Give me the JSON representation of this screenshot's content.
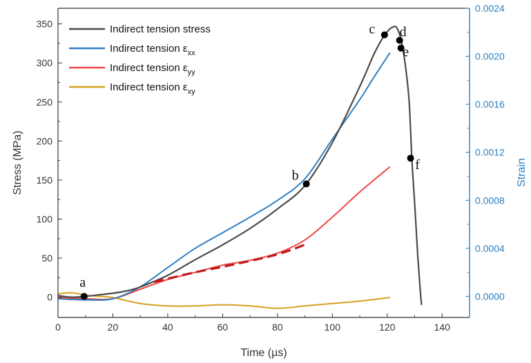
{
  "colors": {
    "stress": "#4a4a4a",
    "exx": "#2e7fc4",
    "eyy": "#f04545",
    "eyy_fit": "#c01818",
    "exy": "#d4a020",
    "axis": "#333333",
    "right_axis": "#2a7fc0"
  },
  "chart_data": {
    "type": "line",
    "xlabel": "Time (µs)",
    "ylabel": "Stress (MPa)",
    "y2label": "Strain",
    "xlim": [
      0,
      150
    ],
    "ylim": [
      -26,
      370
    ],
    "y2lim": [
      -0.000176,
      0.0024
    ],
    "xticks": [
      0,
      20,
      40,
      60,
      80,
      100,
      120,
      140
    ],
    "yticks": [
      0,
      50,
      100,
      150,
      200,
      250,
      300,
      350
    ],
    "y2ticks": [
      "0.0000",
      "0.0004",
      "0.0008",
      "0.0012",
      "0.0016",
      "0.0020",
      "0.0024"
    ],
    "legend": [
      {
        "key": "stress",
        "label": "Indirect tension stress",
        "sub": ""
      },
      {
        "key": "exx",
        "label": "Indirect tension ε",
        "sub": "xx"
      },
      {
        "key": "eyy",
        "label": "Indirect tension ε",
        "sub": "yy"
      },
      {
        "key": "exy",
        "label": "Indirect tension ε",
        "sub": "xy"
      }
    ],
    "series": [
      {
        "key": "stress",
        "axis": "left",
        "x": [
          0,
          5,
          10,
          15,
          20,
          25,
          30,
          40,
          50,
          60,
          70,
          80,
          90,
          100,
          110,
          115,
          118,
          120,
          122,
          123.5,
          125,
          126.5,
          128,
          129,
          130,
          131,
          132,
          132.5
        ],
        "y": [
          2,
          0,
          1,
          3,
          5,
          8,
          13,
          28,
          48,
          67,
          88,
          113,
          143,
          198,
          270,
          310,
          330,
          340,
          346,
          345,
          330,
          300,
          250,
          175,
          120,
          60,
          10,
          -10
        ]
      },
      {
        "key": "exx",
        "axis": "right",
        "x": [
          0,
          10,
          20,
          30,
          40,
          50,
          60,
          70,
          80,
          90,
          100,
          110,
          115,
          121
        ],
        "y": [
          -2e-05,
          -3e-05,
          -2e-05,
          8e-05,
          0.00024,
          0.0004,
          0.00053,
          0.00066,
          0.0008,
          0.00098,
          0.00131,
          0.00164,
          0.00182,
          0.00203
        ]
      },
      {
        "key": "eyy",
        "axis": "right",
        "x": [
          0,
          10,
          20,
          30,
          40,
          50,
          60,
          70,
          80,
          90,
          100,
          110,
          121
        ],
        "y": [
          -1e-05,
          -2e-05,
          -2e-05,
          6e-05,
          0.00014,
          0.0002,
          0.00026,
          0.0003,
          0.00036,
          0.00047,
          0.00066,
          0.00087,
          0.00108
        ]
      },
      {
        "key": "exy",
        "axis": "right",
        "x": [
          0,
          5,
          10,
          15,
          20,
          30,
          40,
          50,
          60,
          70,
          80,
          90,
          100,
          110,
          121
        ],
        "y": [
          2e-05,
          3e-05,
          1e-05,
          0.0,
          -1e-05,
          -6e-05,
          -8e-05,
          -8e-05,
          -7e-05,
          -8e-05,
          -0.0001,
          -8e-05,
          -6e-05,
          -4e-05,
          -1e-05
        ]
      }
    ],
    "fit": {
      "key": "eyy_fit",
      "axis": "right",
      "style": "dashed",
      "x": [
        35,
        50,
        65,
        80,
        90
      ],
      "y": [
        0.00012,
        0.0002,
        0.00027,
        0.00035,
        0.00043
      ]
    },
    "points": [
      {
        "label": "a",
        "x": 9.5,
        "y": 1,
        "lx": -2,
        "ly": -14
      },
      {
        "label": "b",
        "x": 90.5,
        "y": 145,
        "lx": -16,
        "ly": -6
      },
      {
        "label": "c",
        "x": 119,
        "y": 336,
        "lx": -18,
        "ly": -2
      },
      {
        "label": "d",
        "x": 124.5,
        "y": 329,
        "lx": 5,
        "ly": -6
      },
      {
        "label": "e",
        "x": 125,
        "y": 319,
        "lx": 7,
        "ly": 12
      },
      {
        "label": "f",
        "x": 128.5,
        "y": 178,
        "lx": 10,
        "ly": 16
      }
    ]
  }
}
